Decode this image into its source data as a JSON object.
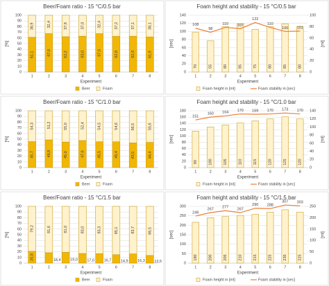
{
  "chart_data": [
    {
      "type": "stacked_bar",
      "title": "Beer/Foam ratio - 15 °C/0.5 bar",
      "xlabel": "Experiment",
      "ylabel": "[%]",
      "categories": [
        "1",
        "2",
        "3",
        "4",
        "5",
        "6",
        "7",
        "8"
      ],
      "ylim": [
        0,
        100
      ],
      "yticks": [
        0,
        10,
        20,
        30,
        40,
        50,
        60,
        70,
        80,
        90,
        100
      ],
      "grid": true,
      "series": [
        {
          "name": "Beer",
          "color": "#f2b705",
          "values": [
            61.1,
            67.6,
            62.2,
            63.0,
            67.6,
            62.8,
            62.9,
            61.9
          ],
          "value_labels": [
            "61,1",
            "67,6",
            "62,2",
            "63,0",
            "67,6",
            "62,8",
            "62,9",
            "61,9"
          ]
        },
        {
          "name": "Foam",
          "color": "#fff2cc",
          "values": [
            38.9,
            32.4,
            37.8,
            37.0,
            32.4,
            37.2,
            37.1,
            38.1
          ],
          "value_labels": [
            "38,9",
            "32,4",
            "37,8",
            "37,0",
            "32,4",
            "37,2",
            "37,1",
            "38,1"
          ]
        }
      ]
    },
    {
      "type": "bar_line",
      "title": "Foam height and stability - 15 °C/0.5 bar",
      "xlabel": "Experiment",
      "ylabel": "[sec]",
      "y2label": "[ml]",
      "categories": [
        "1",
        "2",
        "3",
        "4",
        "5",
        "6",
        "7",
        "8"
      ],
      "ylim": [
        0,
        140
      ],
      "yticks": [
        0,
        20,
        40,
        60,
        80,
        100,
        120,
        140
      ],
      "y2lim": [
        0,
        100
      ],
      "y2ticks": [
        0,
        20,
        40,
        60,
        80,
        100
      ],
      "grid": true,
      "series": [
        {
          "name": "Foam height in [ml]",
          "type": "bar",
          "axis": "y2",
          "color": "#fff2cc",
          "values": [
            70,
            55,
            80,
            85,
            75,
            80,
            85,
            80
          ]
        },
        {
          "name": "Foam stability in [sec]",
          "type": "line",
          "axis": "y",
          "color": "#ed7d31",
          "values": [
            108,
            98,
            110,
            107,
            122,
            110,
            100,
            101
          ]
        }
      ]
    },
    {
      "type": "stacked_bar",
      "title": "Beer/Foam ratio - 15 °C/1.0 bar",
      "xlabel": "Experiment",
      "ylabel": "[%]",
      "categories": [
        "1",
        "2",
        "3",
        "4",
        "5",
        "6",
        "7",
        "8"
      ],
      "ylim": [
        0,
        100
      ],
      "yticks": [
        0,
        10,
        20,
        30,
        40,
        50,
        60,
        70,
        80,
        90,
        100
      ],
      "grid": true,
      "series": [
        {
          "name": "Beer",
          "color": "#f2b705",
          "values": [
            45.7,
            48.8,
            45.0,
            47.6,
            45.5,
            45.4,
            43.5,
            44.4
          ],
          "value_labels": [
            "45,7",
            "48,8",
            "45,0",
            "47,6",
            "45,5",
            "45,4",
            "43,5",
            "44,4"
          ]
        },
        {
          "name": "Foam",
          "color": "#fff2cc",
          "values": [
            54.3,
            51.2,
            55.0,
            52.4,
            54.5,
            54.6,
            56.5,
            55.6
          ],
          "value_labels": [
            "54,3",
            "51,2",
            "55,0",
            "52,4",
            "54,5",
            "54,6",
            "56,5",
            "55,6"
          ]
        }
      ]
    },
    {
      "type": "bar_line",
      "title": "Foam height and stability - 15 °C/1.0 bar",
      "xlabel": "Experiment",
      "ylabel": "[sec]",
      "y2label": "[ml]",
      "categories": [
        "1",
        "2",
        "3",
        "4",
        "5",
        "6",
        "7",
        "8"
      ],
      "ylim": [
        0,
        180
      ],
      "yticks": [
        0,
        20,
        40,
        60,
        80,
        100,
        120,
        140,
        160,
        180
      ],
      "y2lim": [
        0,
        140
      ],
      "y2ticks": [
        0,
        20,
        40,
        60,
        80,
        100,
        120,
        140
      ],
      "grid": true,
      "series": [
        {
          "name": "Foam height in [ml]",
          "type": "bar",
          "axis": "y2",
          "color": "#fff2cc",
          "values": [
            90,
            100,
            105,
            110,
            115,
            120,
            125,
            120
          ]
        },
        {
          "name": "Foam stability in [sec]",
          "type": "line",
          "axis": "y",
          "color": "#ed7d31",
          "values": [
            151,
            160,
            164,
            170,
            169,
            170,
            173,
            170
          ]
        }
      ]
    },
    {
      "type": "stacked_bar",
      "title": "Beer/Foam ratio - 15 °C/1.5 bar",
      "xlabel": "Experiment",
      "ylabel": "[%]",
      "categories": [
        "1",
        "2",
        "3",
        "4",
        "5",
        "6",
        "7",
        "8"
      ],
      "ylim": [
        0,
        100
      ],
      "yticks": [
        0,
        10,
        20,
        30,
        40,
        50,
        60,
        70,
        80,
        90,
        100
      ],
      "grid": true,
      "series": [
        {
          "name": "Beer",
          "color": "#f2b705",
          "values": [
            20.8,
            18.4,
            19.0,
            17.0,
            16.7,
            14.9,
            16.3,
            13.5
          ],
          "value_labels": [
            "20,8",
            "18,4",
            "19,0",
            "17,0",
            "16,7",
            "14,9",
            "16,3",
            "13,5"
          ]
        },
        {
          "name": "Foam",
          "color": "#fff2cc",
          "values": [
            79.2,
            81.6,
            81.0,
            83.0,
            83.3,
            85.1,
            83.7,
            86.5
          ],
          "value_labels": [
            "79,2",
            "81,6",
            "81,0",
            "83,0",
            "83,3",
            "85,1",
            "83,7",
            "86,5"
          ]
        }
      ]
    },
    {
      "type": "bar_line",
      "title": "Foam height and stability - 15 °C/1.5 bar",
      "xlabel": "Experiment",
      "ylabel": "[sec]",
      "y2label": "[ml]",
      "categories": [
        "1",
        "2",
        "3",
        "4",
        "5",
        "6",
        "7",
        "8"
      ],
      "ylim": [
        0,
        300
      ],
      "yticks": [
        0,
        50,
        100,
        150,
        200,
        250,
        300
      ],
      "y2lim": [
        0,
        250
      ],
      "y2ticks": [
        0,
        50,
        100,
        150,
        200,
        250
      ],
      "grid": true,
      "series": [
        {
          "name": "Foam height in [ml]",
          "type": "bar",
          "axis": "y2",
          "color": "#fff2cc",
          "values": [
            180,
            200,
            205,
            210,
            215,
            225,
            235,
            225
          ]
        },
        {
          "name": "Foam stability in [sec]",
          "type": "line",
          "axis": "y",
          "color": "#ed7d31",
          "values": [
            249,
            267,
            277,
            267,
            290,
            288,
            307,
            303
          ]
        }
      ]
    }
  ]
}
